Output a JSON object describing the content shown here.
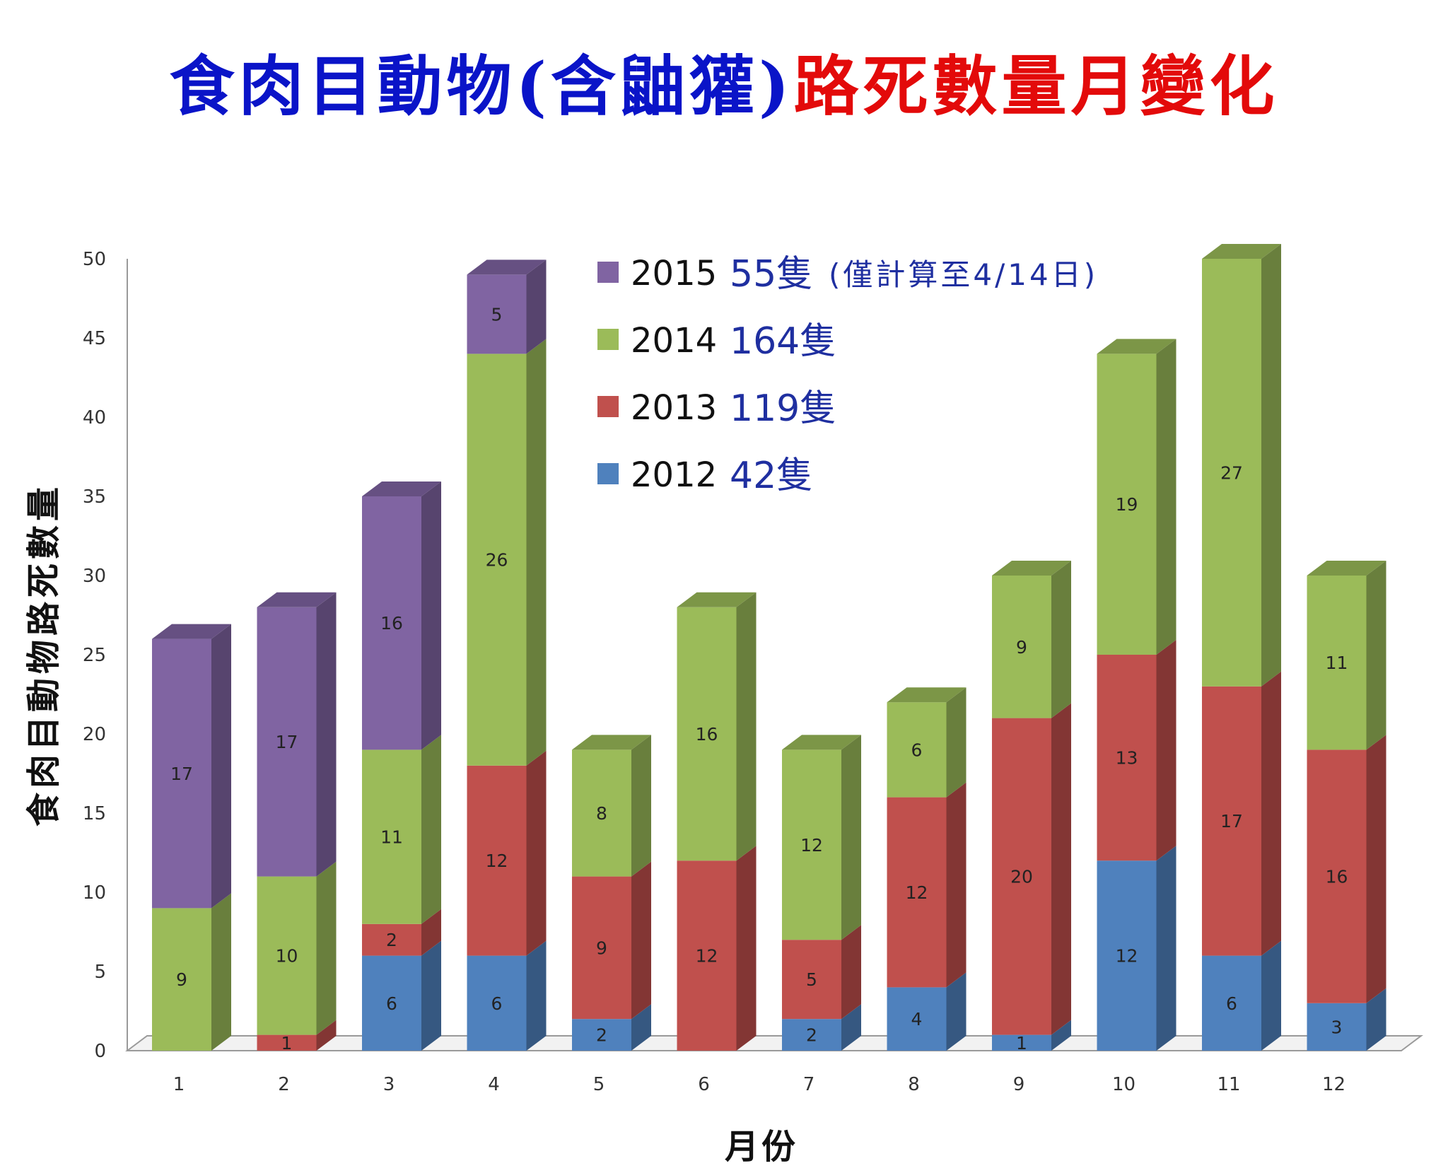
{
  "title": {
    "part1": "食肉目動物(含鼬獾)",
    "part2": "路死數量月變化",
    "color1": "#0a14c8",
    "color2": "#e30a0a"
  },
  "chart_data": {
    "type": "bar",
    "stacked": true,
    "three_d": true,
    "xlabel": "月份",
    "ylabel": "食肉目動物路死數量",
    "ylim": [
      0,
      50
    ],
    "yticks": [
      0,
      5,
      10,
      15,
      20,
      25,
      30,
      35,
      40,
      45,
      50
    ],
    "categories": [
      "1",
      "2",
      "3",
      "4",
      "5",
      "6",
      "7",
      "8",
      "9",
      "10",
      "11",
      "12"
    ],
    "series": [
      {
        "name": "2012",
        "color": "#4f81bd",
        "values": [
          0,
          0,
          6,
          6,
          2,
          0,
          2,
          4,
          1,
          12,
          6,
          3
        ]
      },
      {
        "name": "2013",
        "color": "#c0504d",
        "values": [
          0,
          1,
          2,
          12,
          9,
          12,
          5,
          12,
          20,
          13,
          17,
          16
        ]
      },
      {
        "name": "2014",
        "color": "#9bbb59",
        "values": [
          9,
          10,
          11,
          26,
          8,
          16,
          12,
          6,
          9,
          19,
          27,
          11
        ]
      },
      {
        "name": "2015",
        "color": "#8064a2",
        "values": [
          17,
          17,
          16,
          5,
          0,
          0,
          0,
          0,
          0,
          0,
          0,
          0
        ]
      }
    ],
    "legend": {
      "position": "top-center",
      "entries": [
        {
          "year": "2015",
          "total": "55隻",
          "note": "(僅計算至4/14日)",
          "color": "#8064a2"
        },
        {
          "year": "2014",
          "total": "164隻",
          "note": "",
          "color": "#9bbb59"
        },
        {
          "year": "2013",
          "total": "119隻",
          "note": "",
          "color": "#c0504d"
        },
        {
          "year": "2012",
          "total": "42隻",
          "note": "",
          "color": "#4f81bd"
        }
      ],
      "total_color": "#1f2fa0"
    }
  }
}
